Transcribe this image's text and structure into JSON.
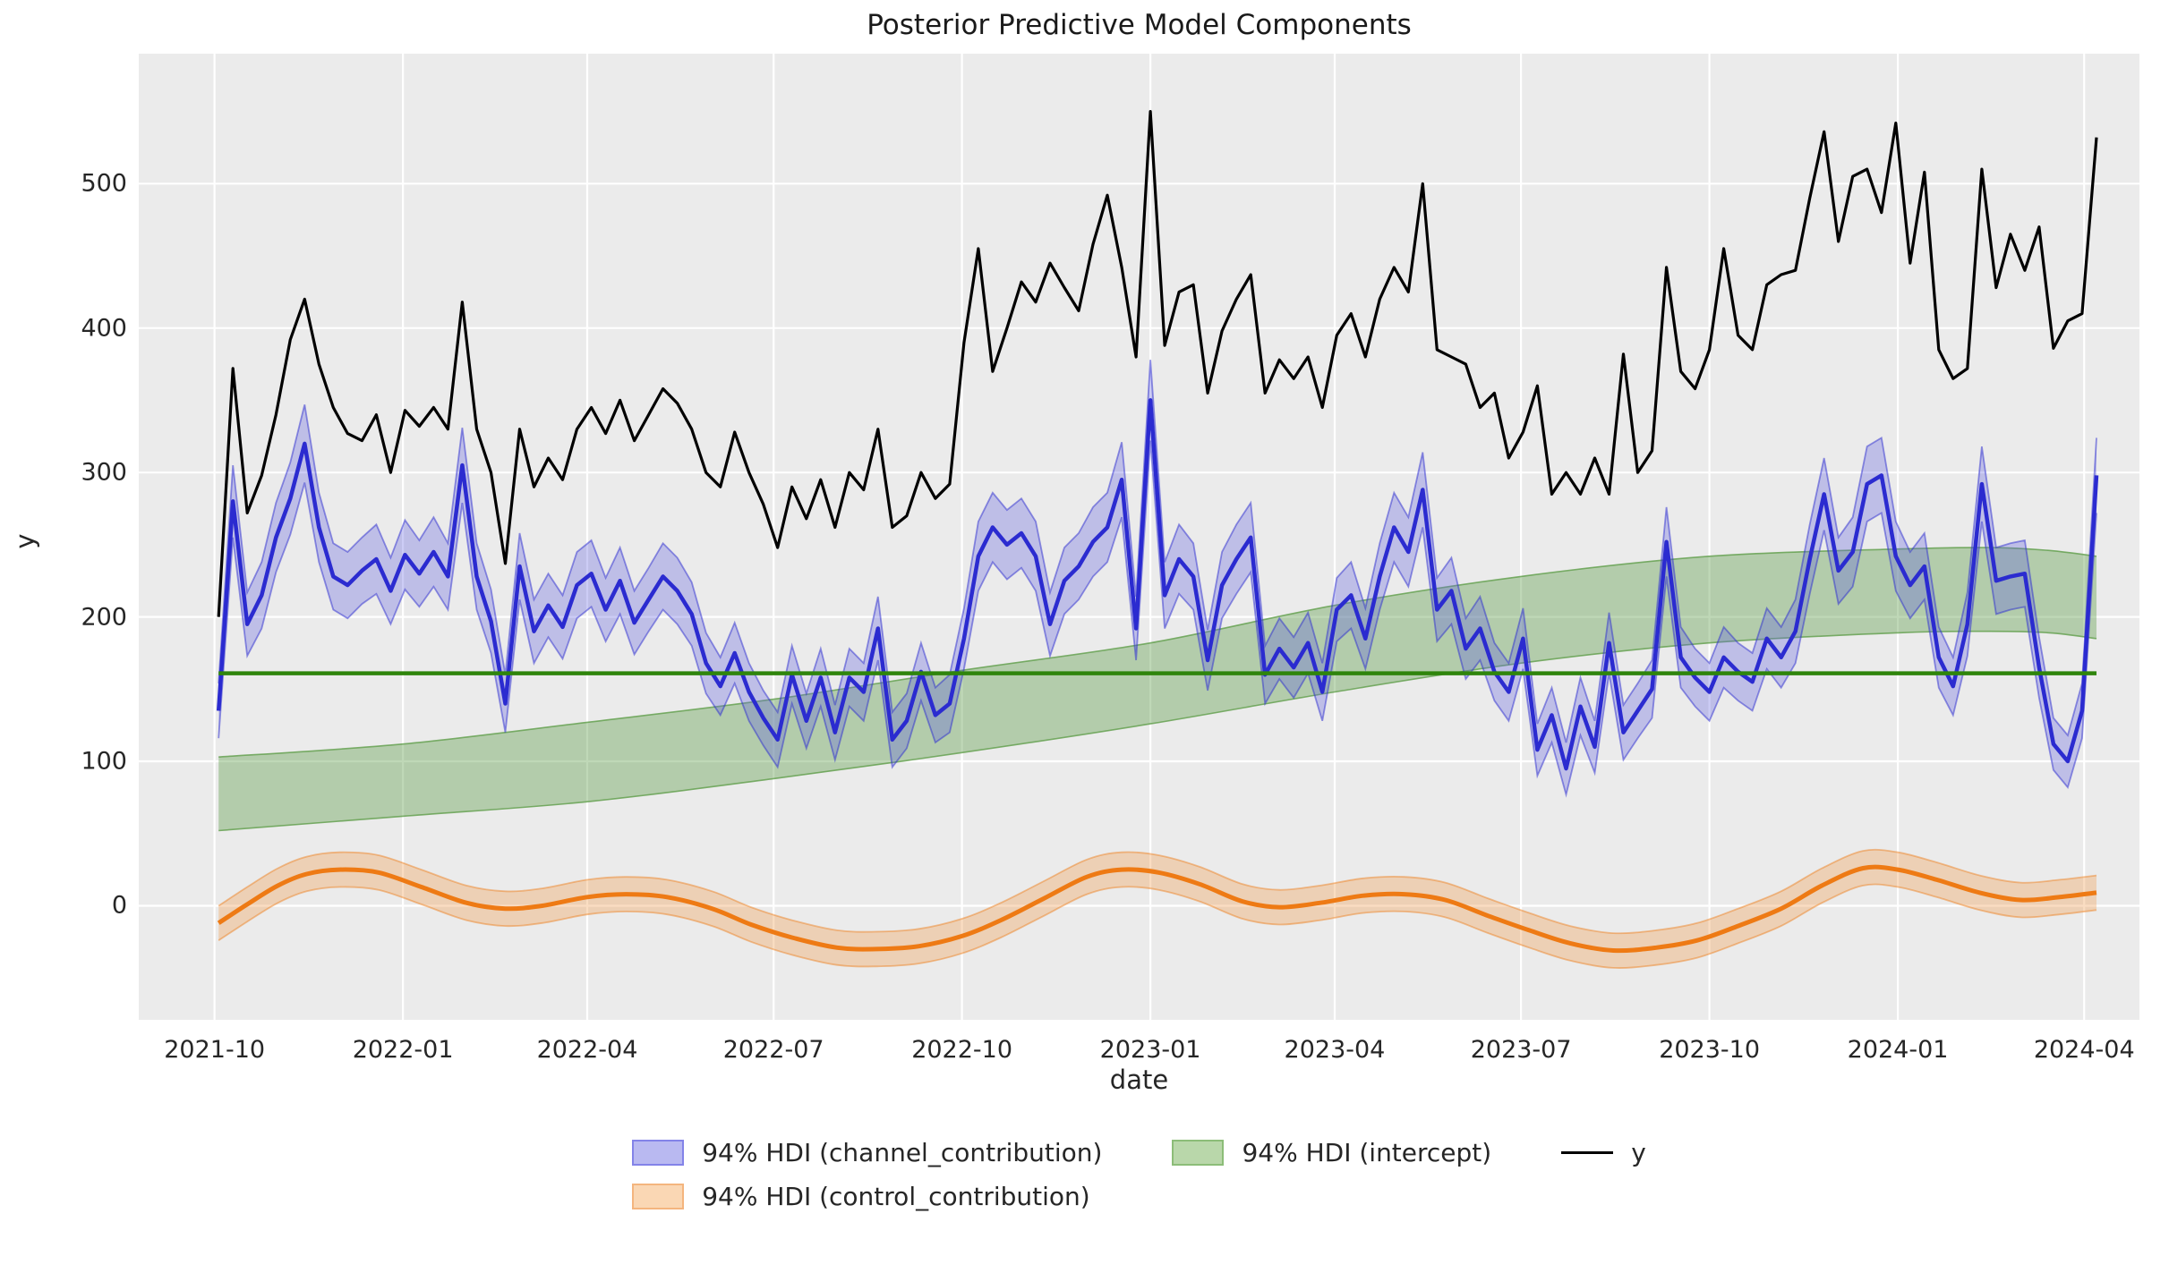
{
  "chart_data": {
    "type": "line",
    "title": "Posterior Predictive Model Components",
    "xlabel": "date",
    "ylabel": "y",
    "ylim": [
      -79,
      590
    ],
    "grid": true,
    "legend_position": "below",
    "x_domain": [
      "2021-08-25",
      "2024-04-28"
    ],
    "y_ticks": [
      0,
      100,
      200,
      300,
      400,
      500
    ],
    "x_ticks": [
      {
        "date": "2021-10-01",
        "label": "2021-10"
      },
      {
        "date": "2022-01-01",
        "label": "2022-01"
      },
      {
        "date": "2022-04-01",
        "label": "2022-04"
      },
      {
        "date": "2022-07-01",
        "label": "2022-07"
      },
      {
        "date": "2022-10-01",
        "label": "2022-10"
      },
      {
        "date": "2023-01-01",
        "label": "2023-01"
      },
      {
        "date": "2023-04-01",
        "label": "2023-04"
      },
      {
        "date": "2023-07-01",
        "label": "2023-07"
      },
      {
        "date": "2023-10-01",
        "label": "2023-10"
      },
      {
        "date": "2024-01-01",
        "label": "2024-01"
      },
      {
        "date": "2024-04-01",
        "label": "2024-04"
      }
    ],
    "y_series": {
      "name": "y",
      "start": "2021-10-03",
      "freq_days": 7,
      "values": [
        200,
        372,
        272,
        298,
        340,
        392,
        420,
        375,
        345,
        327,
        322,
        340,
        300,
        343,
        332,
        345,
        330,
        418,
        330,
        300,
        237,
        330,
        290,
        310,
        295,
        330,
        345,
        327,
        350,
        322,
        340,
        358,
        348,
        330,
        300,
        290,
        328,
        300,
        278,
        248,
        290,
        268,
        295,
        262,
        300,
        288,
        330,
        262,
        270,
        300,
        282,
        292,
        390,
        455,
        370,
        400,
        432,
        418,
        445,
        428,
        412,
        458,
        492,
        442,
        380,
        550,
        388,
        425,
        430,
        355,
        398,
        420,
        437,
        355,
        378,
        365,
        380,
        345,
        395,
        410,
        380,
        420,
        442,
        425,
        500,
        385,
        380,
        375,
        345,
        355,
        310,
        328,
        360,
        285,
        300,
        285,
        310,
        285,
        382,
        300,
        315,
        442,
        370,
        358,
        385,
        455,
        395,
        385,
        430,
        437,
        440,
        490,
        536,
        460,
        505,
        510,
        480,
        542,
        445,
        508,
        385,
        365,
        372,
        510,
        428,
        465,
        440,
        470,
        386,
        405,
        410,
        532
      ]
    },
    "channel_contribution": {
      "name": "94% HDI (channel_contribution)",
      "start": "2021-10-03",
      "freq_days": 7,
      "mean": [
        135,
        280,
        195,
        215,
        255,
        282,
        320,
        262,
        228,
        222,
        232,
        240,
        218,
        243,
        230,
        245,
        228,
        305,
        228,
        197,
        140,
        235,
        190,
        208,
        193,
        222,
        230,
        205,
        225,
        196,
        212,
        228,
        218,
        202,
        168,
        152,
        175,
        148,
        130,
        115,
        160,
        128,
        158,
        120,
        158,
        148,
        192,
        115,
        128,
        162,
        132,
        140,
        185,
        242,
        262,
        250,
        258,
        242,
        195,
        225,
        235,
        252,
        262,
        295,
        192,
        350,
        215,
        240,
        228,
        170,
        222,
        240,
        255,
        160,
        178,
        165,
        182,
        148,
        205,
        215,
        185,
        228,
        262,
        245,
        288,
        205,
        218,
        178,
        192,
        162,
        148,
        185,
        108,
        132,
        95,
        138,
        110,
        182,
        120,
        135,
        150,
        252,
        172,
        158,
        148,
        172,
        162,
        155,
        185,
        172,
        190,
        240,
        285,
        232,
        245,
        292,
        298,
        242,
        222,
        235,
        172,
        152,
        195,
        292,
        225,
        228,
        230,
        165,
        112,
        100,
        135,
        298
      ],
      "hdi_half": [
        19,
        25,
        22,
        23,
        24,
        25,
        27,
        24,
        23,
        23,
        23,
        24,
        23,
        24,
        23,
        24,
        23,
        26,
        23,
        22,
        20,
        23,
        22,
        22,
        22,
        23,
        23,
        22,
        23,
        22,
        22,
        23,
        23,
        22,
        21,
        20,
        21,
        20,
        19,
        19,
        20,
        19,
        20,
        19,
        20,
        20,
        22,
        19,
        19,
        20,
        19,
        20,
        21,
        24,
        24,
        24,
        24,
        24,
        22,
        23,
        23,
        24,
        24,
        26,
        22,
        28,
        23,
        24,
        23,
        21,
        23,
        24,
        24,
        20,
        21,
        21,
        21,
        20,
        22,
        23,
        21,
        23,
        24,
        24,
        26,
        22,
        23,
        21,
        22,
        20,
        20,
        21,
        18,
        19,
        18,
        20,
        18,
        21,
        19,
        19,
        20,
        24,
        21,
        20,
        20,
        21,
        20,
        20,
        21,
        21,
        22,
        24,
        25,
        23,
        24,
        26,
        26,
        24,
        23,
        23,
        21,
        20,
        22,
        26,
        23,
        23,
        23,
        21,
        18,
        18,
        19,
        26
      ]
    },
    "intercept": {
      "name": "94% HDI (intercept)",
      "line_value": 161,
      "dates": [
        "2021-10-03",
        "2022-01-01",
        "2022-04-01",
        "2022-07-01",
        "2022-10-01",
        "2023-01-01",
        "2023-04-01",
        "2023-07-01",
        "2023-10-01",
        "2024-01-01",
        "2024-02-15",
        "2024-03-15",
        "2024-04-07"
      ],
      "hdi_high": [
        103,
        112,
        127,
        143,
        163,
        182,
        208,
        228,
        242,
        247,
        248,
        246,
        242
      ],
      "hdi_low": [
        52,
        62,
        72,
        88,
        106,
        126,
        148,
        168,
        182,
        189,
        190,
        189,
        185
      ]
    },
    "control_contribution": {
      "name": "94% HDI (control_contribution)",
      "hdi_half": 12,
      "dates": [
        "2021-10-03",
        "2021-10-17",
        "2021-11-01",
        "2021-11-15",
        "2021-12-01",
        "2021-12-20",
        "2022-01-10",
        "2022-02-01",
        "2022-02-20",
        "2022-03-10",
        "2022-04-01",
        "2022-04-20",
        "2022-05-10",
        "2022-06-01",
        "2022-06-20",
        "2022-07-10",
        "2022-08-01",
        "2022-08-20",
        "2022-09-10",
        "2022-10-01",
        "2022-10-20",
        "2022-11-10",
        "2022-12-01",
        "2022-12-18",
        "2023-01-05",
        "2023-01-25",
        "2023-02-15",
        "2023-03-05",
        "2023-03-25",
        "2023-04-15",
        "2023-05-05",
        "2023-05-25",
        "2023-06-15",
        "2023-07-05",
        "2023-07-25",
        "2023-08-15",
        "2023-09-05",
        "2023-09-25",
        "2023-10-15",
        "2023-11-05",
        "2023-11-25",
        "2023-12-15",
        "2024-01-01",
        "2024-01-20",
        "2024-02-10",
        "2024-03-01",
        "2024-03-20",
        "2024-04-07"
      ],
      "mean": [
        -12,
        1,
        14,
        22,
        25,
        23,
        13,
        2,
        -2,
        0,
        6,
        8,
        6,
        -2,
        -13,
        -22,
        -29,
        -30,
        -28,
        -21,
        -10,
        5,
        20,
        25,
        23,
        15,
        3,
        -1,
        2,
        7,
        8,
        4,
        -7,
        -17,
        -26,
        -31,
        -29,
        -24,
        -14,
        -2,
        14,
        26,
        25,
        18,
        9,
        4,
        6,
        9
      ]
    }
  },
  "legend": {
    "items": [
      {
        "label": "94% HDI (channel_contribution)",
        "swatch": "patch",
        "color": "#b9b9f1",
        "border": "#8383e8"
      },
      {
        "label": "94% HDI (intercept)",
        "swatch": "patch",
        "color": "#b9d7aa",
        "border": "#8cbd78"
      },
      {
        "label": "y",
        "swatch": "line",
        "color": "#000000"
      },
      {
        "label": "94% HDI (control_contribution)",
        "swatch": "patch",
        "color": "#fad7b4",
        "border": "#f4b57e"
      }
    ]
  },
  "colors": {
    "figure_bg": "#ffffff",
    "axes_bg": "#ebebeb",
    "grid": "#ffffff",
    "text": "#262626",
    "y_line": "#000000",
    "channel_line": "#2b2bd0",
    "channel_fill": "#6060e0",
    "intercept_line": "#2f850c",
    "intercept_fill": "#5f9e4a",
    "control_line": "#ee7a14",
    "control_fill": "#f3a55e"
  }
}
